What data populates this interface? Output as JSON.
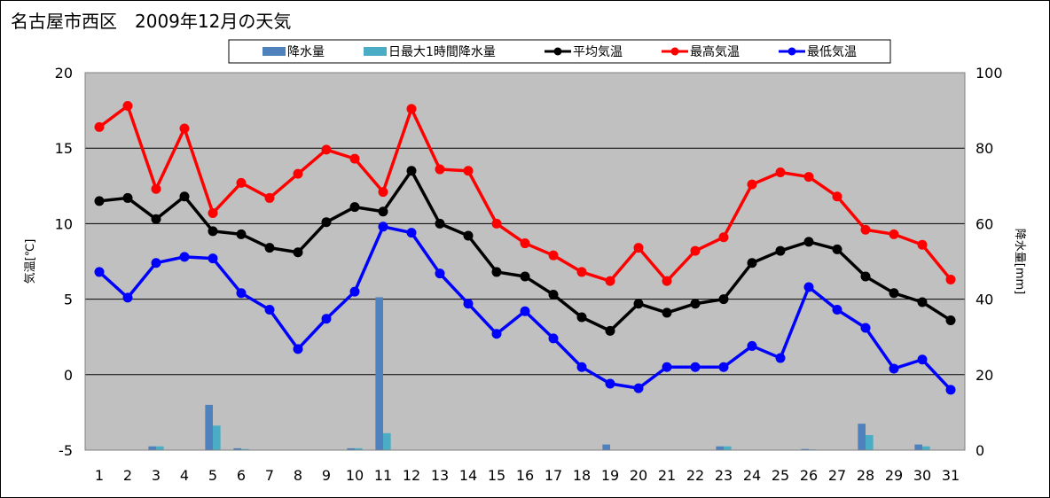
{
  "chart_data": {
    "type": "bar+line",
    "title": "名古屋市西区　2009年12月の天気",
    "ylabel_left": "気温[℃]",
    "ylabel_right": "降水量[mm]",
    "ylim_left": [
      -5,
      20
    ],
    "ylim_right": [
      0,
      100
    ],
    "yticks_left": [
      "20",
      "15",
      "10",
      "5",
      "0",
      "-5"
    ],
    "yticks_right": [
      "100",
      "80",
      "60",
      "40",
      "20",
      "0"
    ],
    "grid": true,
    "legend_position": "top",
    "categories": [
      "1",
      "2",
      "3",
      "4",
      "5",
      "6",
      "7",
      "8",
      "9",
      "10",
      "11",
      "12",
      "13",
      "14",
      "15",
      "16",
      "17",
      "18",
      "19",
      "20",
      "21",
      "22",
      "23",
      "24",
      "25",
      "26",
      "27",
      "28",
      "29",
      "30",
      "31"
    ],
    "bar_series": [
      {
        "name": "降水量",
        "color": "#4f81bd",
        "axis": "right",
        "values": [
          0,
          0,
          1,
          0,
          12,
          0.5,
          0,
          0,
          0,
          0.5,
          40.5,
          0,
          0,
          0,
          0,
          0,
          0,
          0,
          1.5,
          0,
          0,
          0,
          1,
          0,
          0,
          0.3,
          0,
          7,
          0,
          1.5,
          0
        ]
      },
      {
        "name": "日最大1時間降水量",
        "color": "#4bacc6",
        "axis": "right",
        "values": [
          0,
          0,
          1,
          0,
          6.5,
          0.3,
          0,
          0,
          0,
          0.5,
          4.5,
          0,
          0,
          0,
          0,
          0,
          0,
          0,
          0,
          0,
          0,
          0,
          1,
          0,
          0,
          0.2,
          0,
          4,
          0,
          1,
          0
        ]
      }
    ],
    "line_series": [
      {
        "name": "平均気温",
        "color": "#000000",
        "axis": "left",
        "values": [
          11.5,
          11.7,
          10.3,
          11.8,
          9.5,
          9.3,
          8.4,
          8.1,
          10.1,
          11.1,
          10.8,
          13.5,
          10.0,
          9.2,
          6.8,
          6.5,
          5.3,
          3.8,
          2.9,
          4.7,
          4.1,
          4.7,
          5.0,
          7.4,
          8.2,
          8.8,
          8.3,
          6.5,
          5.4,
          4.8,
          3.6
        ]
      },
      {
        "name": "最高気温",
        "color": "#ff0000",
        "axis": "left",
        "values": [
          16.4,
          17.8,
          12.3,
          16.3,
          10.7,
          12.7,
          11.7,
          13.3,
          14.9,
          14.3,
          12.1,
          17.6,
          13.6,
          13.5,
          10.0,
          8.7,
          7.9,
          6.8,
          6.2,
          8.4,
          6.2,
          8.2,
          9.1,
          12.6,
          13.4,
          13.1,
          11.8,
          9.6,
          9.3,
          8.6,
          6.3
        ]
      },
      {
        "name": "最低気温",
        "color": "#0000ff",
        "axis": "left",
        "values": [
          6.8,
          5.1,
          7.4,
          7.8,
          7.7,
          5.4,
          4.3,
          1.7,
          3.7,
          5.5,
          9.8,
          9.4,
          6.7,
          4.7,
          2.7,
          4.2,
          2.4,
          0.5,
          -0.6,
          -0.9,
          0.5,
          0.5,
          0.5,
          1.9,
          1.1,
          5.8,
          4.3,
          3.1,
          0.4,
          1.0,
          -1.0
        ]
      }
    ]
  }
}
